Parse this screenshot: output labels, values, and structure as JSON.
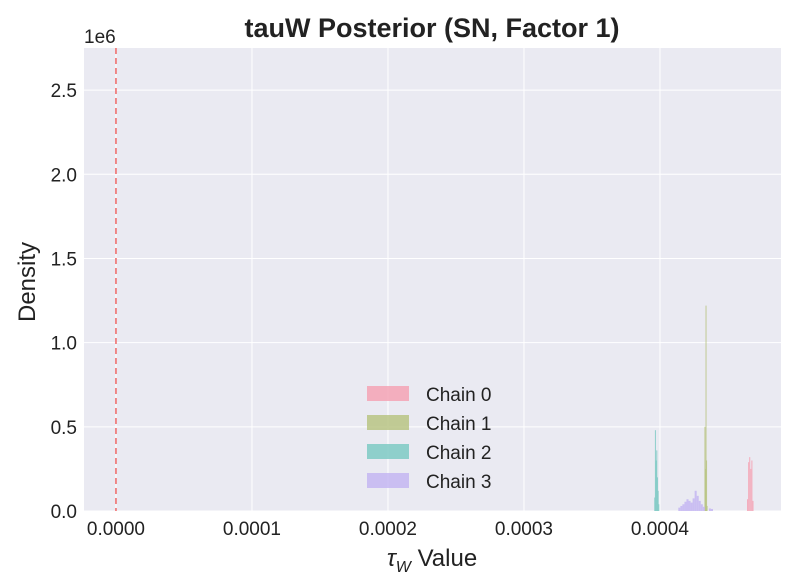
{
  "chart_data": {
    "type": "bar",
    "title": "tauW Posterior (SN, Factor 1)",
    "xlabel": "τ_W Value",
    "xlabel_main": "τ",
    "xlabel_sub": "W",
    "xlabel_rest": " Value",
    "ylabel": "Density",
    "y_offset_text": "1e6",
    "xlim": [
      -2.35e-05,
      0.000489
    ],
    "ylim": [
      0,
      2750000
    ],
    "xticks": [
      0.0,
      0.0001,
      0.0002,
      0.0003,
      0.0004
    ],
    "xtick_labels": [
      "0.0000",
      "0.0001",
      "0.0002",
      "0.0003",
      "0.0004"
    ],
    "yticks": [
      0,
      500000,
      1000000,
      1500000,
      2000000,
      2500000
    ],
    "ytick_labels": [
      "0.0",
      "0.5",
      "1.0",
      "1.5",
      "2.0",
      "2.5"
    ],
    "grid": true,
    "legend_position": "lower-center",
    "reference_line": {
      "x": 0.0,
      "color": "#f07070",
      "style": "dashed"
    },
    "series": [
      {
        "name": "Chain 0",
        "color": "#f4a3b5",
        "bins": [
          {
            "x": 0.000464,
            "w": 8e-07,
            "y": 70000
          },
          {
            "x": 0.0004648,
            "w": 8e-07,
            "y": 290000
          },
          {
            "x": 0.0004656,
            "w": 8e-07,
            "y": 320000
          },
          {
            "x": 0.0004664,
            "w": 8e-07,
            "y": 250000
          },
          {
            "x": 0.0004672,
            "w": 8e-07,
            "y": 300000
          },
          {
            "x": 0.000468,
            "w": 8e-07,
            "y": 60000
          }
        ]
      },
      {
        "name": "Chain 1",
        "color": "#b8c484",
        "bins": [
          {
            "x": 0.0004327,
            "w": 4e-07,
            "y": 500000
          },
          {
            "x": 0.0004331,
            "w": 4e-07,
            "y": 250000
          },
          {
            "x": 0.0004335,
            "w": 4e-07,
            "y": 1220000
          },
          {
            "x": 0.0004339,
            "w": 4e-07,
            "y": 300000
          },
          {
            "x": 0.0004343,
            "w": 4e-07,
            "y": 30000
          }
        ]
      },
      {
        "name": "Chain 2",
        "color": "#7ecac4",
        "bins": [
          {
            "x": 0.0003958,
            "w": 5e-07,
            "y": 80000
          },
          {
            "x": 0.0003963,
            "w": 5e-07,
            "y": 480000
          },
          {
            "x": 0.0003968,
            "w": 5e-07,
            "y": 300000
          },
          {
            "x": 0.0003973,
            "w": 5e-07,
            "y": 360000
          },
          {
            "x": 0.0003978,
            "w": 5e-07,
            "y": 200000
          },
          {
            "x": 0.0003983,
            "w": 5e-07,
            "y": 120000
          },
          {
            "x": 0.0003988,
            "w": 5e-07,
            "y": 40000
          }
        ]
      },
      {
        "name": "Chain 3",
        "color": "#c4b6f2",
        "bins": [
          {
            "x": 0.0004135,
            "w": 1.5e-06,
            "y": 20000
          },
          {
            "x": 0.000415,
            "w": 1.5e-06,
            "y": 30000
          },
          {
            "x": 0.0004165,
            "w": 1.5e-06,
            "y": 40000
          },
          {
            "x": 0.000418,
            "w": 1.5e-06,
            "y": 55000
          },
          {
            "x": 0.0004195,
            "w": 1.5e-06,
            "y": 70000
          },
          {
            "x": 0.000421,
            "w": 1.5e-06,
            "y": 60000
          },
          {
            "x": 0.0004225,
            "w": 1.5e-06,
            "y": 50000
          },
          {
            "x": 0.000424,
            "w": 1.5e-06,
            "y": 75000
          },
          {
            "x": 0.0004255,
            "w": 1.5e-06,
            "y": 120000
          },
          {
            "x": 0.000427,
            "w": 1.5e-06,
            "y": 90000
          },
          {
            "x": 0.0004285,
            "w": 1.5e-06,
            "y": 60000
          },
          {
            "x": 0.00043,
            "w": 1.5e-06,
            "y": 40000
          },
          {
            "x": 0.0004315,
            "w": 1.5e-06,
            "y": 25000
          },
          {
            "x": 0.000436,
            "w": 1.5e-06,
            "y": 15000
          },
          {
            "x": 0.0004375,
            "w": 1.5e-06,
            "y": 12000
          }
        ]
      }
    ]
  }
}
